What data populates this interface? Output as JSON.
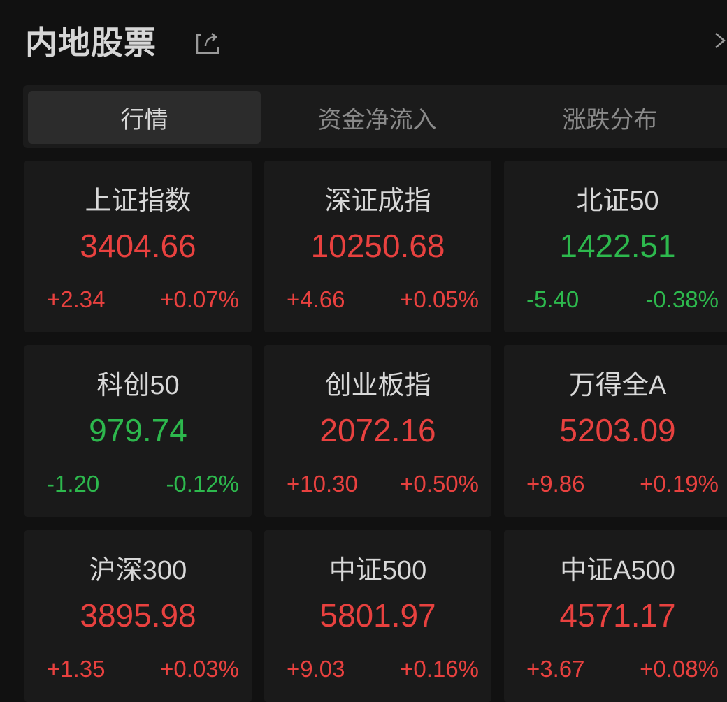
{
  "header": {
    "title": "内地股票",
    "share_icon": "share-icon",
    "more_icon": "chevron-right-icon"
  },
  "tabs": [
    {
      "label": "行情",
      "active": true
    },
    {
      "label": "资金净流入",
      "active": false
    },
    {
      "label": "涨跌分布",
      "active": false
    }
  ],
  "colors": {
    "up": "#e8413f",
    "down": "#2db84d",
    "background": "#111111",
    "card": "#1a1a1a"
  },
  "indices": [
    {
      "name": "上证指数",
      "price": "3404.66",
      "change": "+2.34",
      "percent": "+0.07%",
      "direction": "up"
    },
    {
      "name": "深证成指",
      "price": "10250.68",
      "change": "+4.66",
      "percent": "+0.05%",
      "direction": "up"
    },
    {
      "name": "北证50",
      "price": "1422.51",
      "change": "-5.40",
      "percent": "-0.38%",
      "direction": "down"
    },
    {
      "name": "科创50",
      "price": "979.74",
      "change": "-1.20",
      "percent": "-0.12%",
      "direction": "down"
    },
    {
      "name": "创业板指",
      "price": "2072.16",
      "change": "+10.30",
      "percent": "+0.50%",
      "direction": "up"
    },
    {
      "name": "万得全A",
      "price": "5203.09",
      "change": "+9.86",
      "percent": "+0.19%",
      "direction": "up"
    },
    {
      "name": "沪深300",
      "price": "3895.98",
      "change": "+1.35",
      "percent": "+0.03%",
      "direction": "up"
    },
    {
      "name": "中证500",
      "price": "5801.97",
      "change": "+9.03",
      "percent": "+0.16%",
      "direction": "up"
    },
    {
      "name": "中证A500",
      "price": "4571.17",
      "change": "+3.67",
      "percent": "+0.08%",
      "direction": "up"
    }
  ]
}
